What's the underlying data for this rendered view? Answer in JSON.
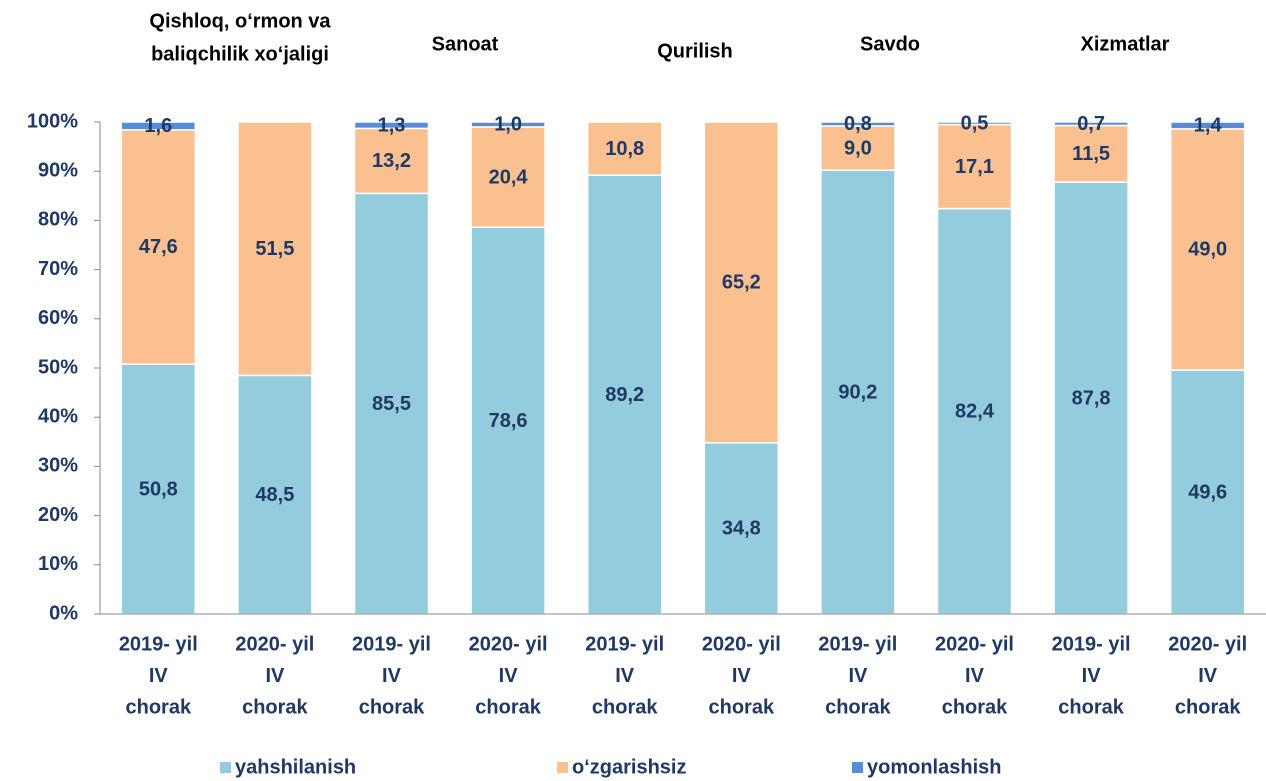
{
  "chart_data": {
    "type": "stacked_bar_percent",
    "groups": [
      [
        "Qishloq, o‘rmon va",
        "baliqchilik xo‘jaligi"
      ],
      [
        "Sanoat"
      ],
      [
        "Qurilish"
      ],
      [
        "Savdo"
      ],
      [
        "Xizmatlar"
      ]
    ],
    "categories": [
      [
        "2019- yil",
        "IV",
        "chorak"
      ],
      [
        "2020- yil",
        "IV",
        "chorak"
      ],
      [
        "2019- yil",
        "IV",
        "chorak"
      ],
      [
        "2020- yil",
        "IV",
        "chorak"
      ],
      [
        "2019- yil",
        "IV",
        "chorak"
      ],
      [
        "2020- yil",
        "IV",
        "chorak"
      ],
      [
        "2019- yil",
        "IV",
        "chorak"
      ],
      [
        "2020- yil",
        "IV",
        "chorak"
      ],
      [
        "2019- yil",
        "IV",
        "chorak"
      ],
      [
        "2020- yil",
        "IV",
        "chorak"
      ]
    ],
    "series": [
      {
        "name": "yahshilanish",
        "color": "#93cddd",
        "values": [
          50.8,
          48.5,
          85.5,
          78.6,
          89.2,
          34.8,
          90.2,
          82.4,
          87.8,
          49.6
        ],
        "value_labels": [
          "50,8",
          "48,5",
          "85,5",
          "78,6",
          "89,2",
          "34,8",
          "90,2",
          "82,4",
          "87,8",
          "49,6"
        ]
      },
      {
        "name": "o‘zgarishsiz",
        "color": "#fac090",
        "values": [
          47.6,
          51.5,
          13.2,
          20.4,
          10.8,
          65.2,
          9.0,
          17.1,
          11.5,
          49.0
        ],
        "value_labels": [
          "47,6",
          "51,5",
          "13,2",
          "20,4",
          "10,8",
          "65,2",
          "9,0",
          "17,1",
          "11,5",
          "49,0"
        ]
      },
      {
        "name": "yomonlashish",
        "color": "#558ed5",
        "values": [
          1.6,
          0,
          1.3,
          1.0,
          0,
          0,
          0.8,
          0.5,
          0.7,
          1.4
        ],
        "value_labels": [
          "1,6",
          null,
          "1,3",
          "1,0",
          null,
          null,
          "0,8",
          "0,5",
          "0,7",
          "1,4"
        ]
      }
    ],
    "ylim": [
      0,
      100
    ],
    "yticks": [
      {
        "value": 0,
        "label": "0%"
      },
      {
        "value": 10,
        "label": "10%"
      },
      {
        "value": 20,
        "label": "20%"
      },
      {
        "value": 30,
        "label": "30%"
      },
      {
        "value": 40,
        "label": "40%"
      },
      {
        "value": 50,
        "label": "50%"
      },
      {
        "value": 60,
        "label": "60%"
      },
      {
        "value": 70,
        "label": "70%"
      },
      {
        "value": 80,
        "label": "80%"
      },
      {
        "value": 90,
        "label": "90%"
      },
      {
        "value": 100,
        "label": "100%"
      }
    ],
    "legend": "bottom"
  }
}
